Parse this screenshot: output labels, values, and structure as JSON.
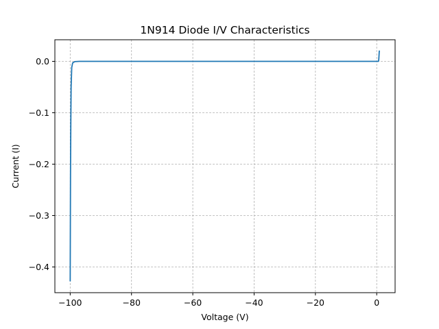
{
  "chart_data": {
    "type": "line",
    "title": "1N914 Diode I/V Characteristics",
    "xlabel": "Voltage (V)",
    "ylabel": "Current (I)",
    "xlim": [
      -105,
      6
    ],
    "ylim": [
      -0.45,
      0.042
    ],
    "grid": true,
    "x_ticks": [
      -100,
      -80,
      -60,
      -40,
      -20,
      0
    ],
    "x_tick_labels": [
      "−100",
      "−80",
      "−60",
      "−40",
      "−20",
      "0"
    ],
    "y_ticks": [
      0.0,
      -0.1,
      -0.2,
      -0.3,
      -0.4
    ],
    "y_tick_labels": [
      "0.0",
      "−0.1",
      "−0.2",
      "−0.3",
      "−0.4"
    ],
    "series": [
      {
        "color": "#1f77b4",
        "x": [
          -100.0,
          -99.95,
          -99.9,
          -99.8,
          -99.7,
          -99.5,
          -99.2,
          -98.5,
          -97.0,
          -90.0,
          -60.0,
          -30.0,
          0.0,
          0.5,
          0.6,
          0.65,
          0.7,
          0.75,
          0.8,
          0.85
        ],
        "y": [
          -0.428,
          -0.32,
          -0.22,
          -0.12,
          -0.05,
          -0.012,
          -0.003,
          -0.0005,
          0.0,
          0.0,
          0.0,
          0.0,
          0.0,
          0.0,
          0.0005,
          0.002,
          0.006,
          0.011,
          0.016,
          0.021
        ]
      }
    ]
  }
}
